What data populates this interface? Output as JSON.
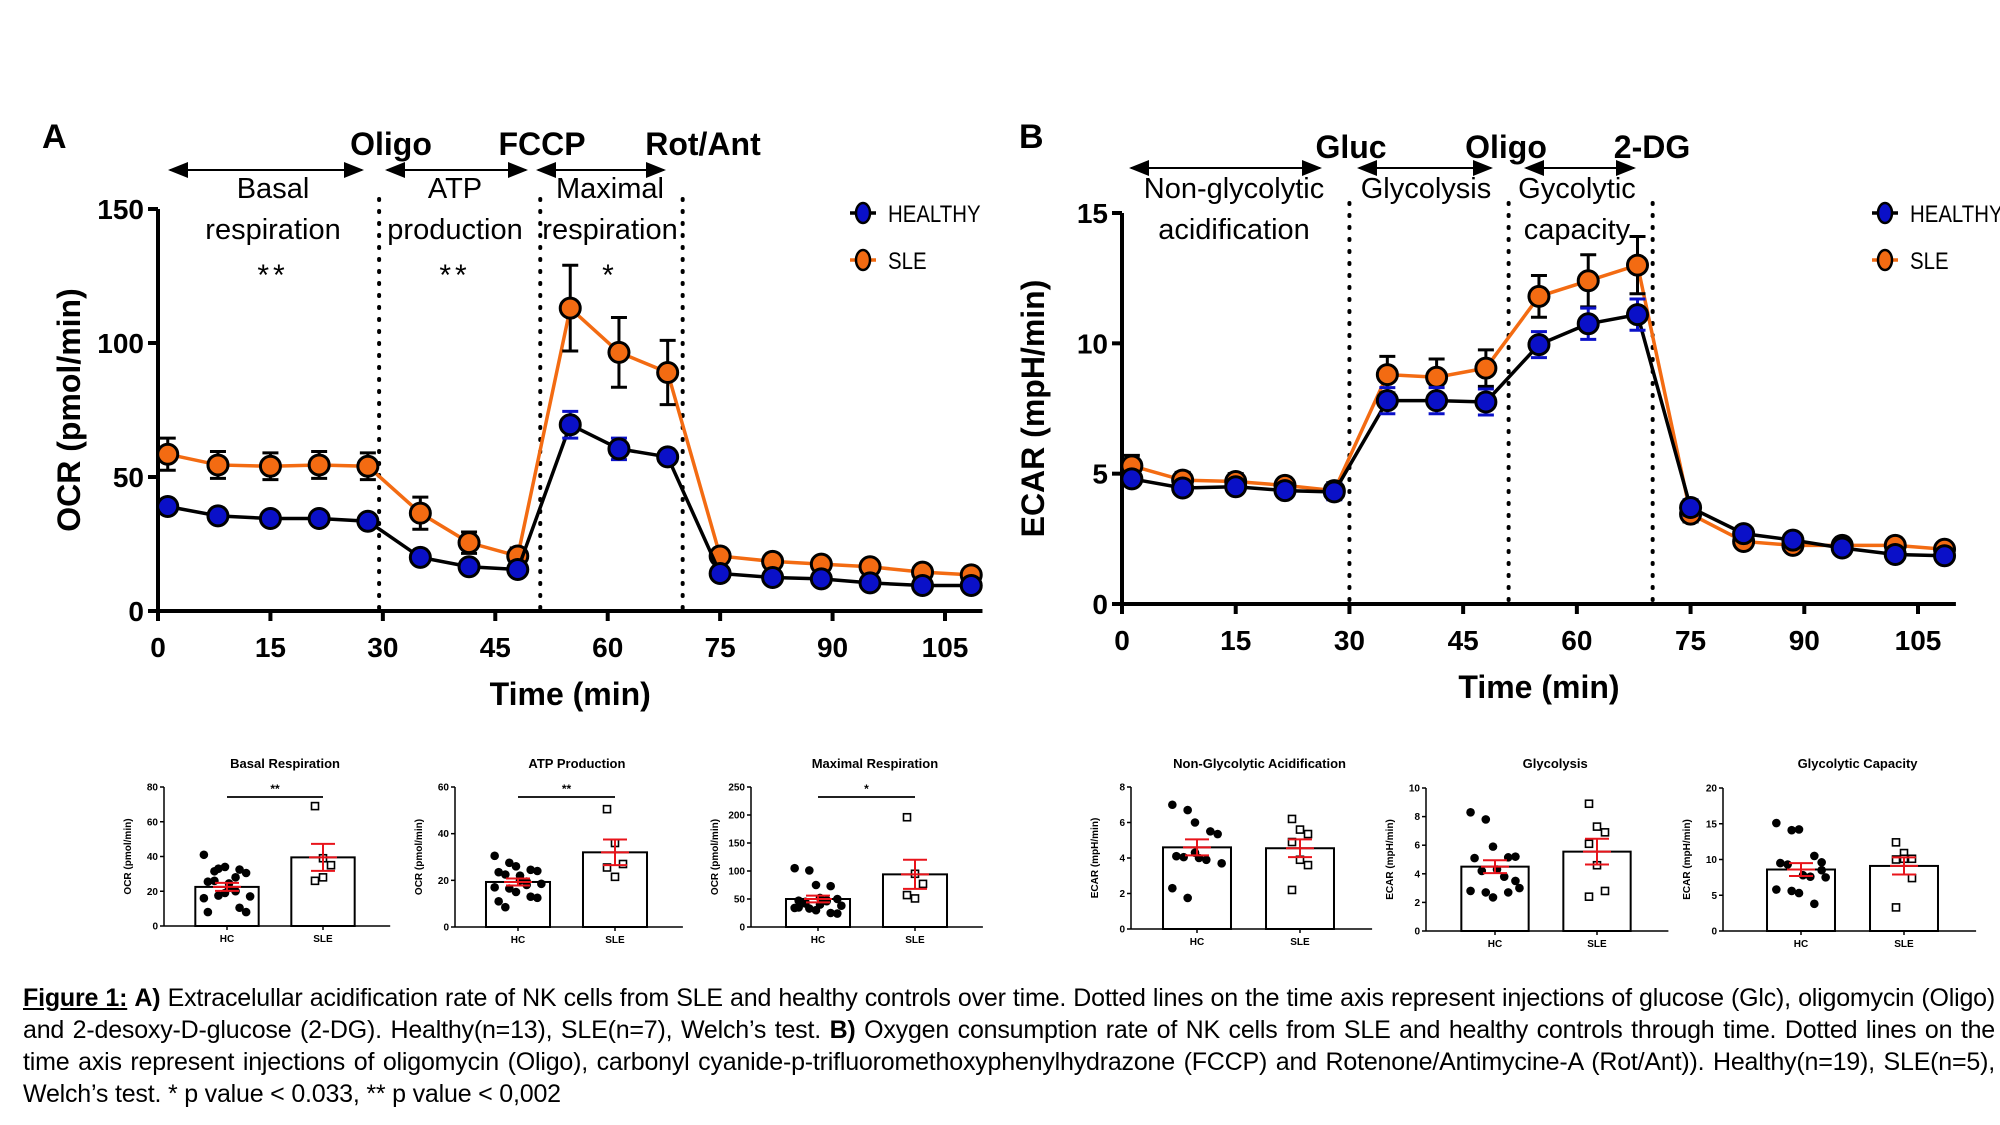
{
  "colors": {
    "healthy": "#0a10c8",
    "sle": "#f36b12",
    "sem": "#e8141b",
    "axis": "#000000"
  },
  "chart_data": [
    {
      "panel": "A",
      "type": "line",
      "xlabel": "Time (min)",
      "ylabel": "OCR (pmol/min)",
      "xlim": [
        0,
        110
      ],
      "ylim": [
        0,
        150
      ],
      "xticks": [
        0,
        15,
        30,
        45,
        60,
        75,
        90,
        105
      ],
      "yticks": [
        0,
        50,
        100,
        150
      ],
      "legend": "top-right",
      "injections": [
        {
          "label": "Oligo",
          "x": 29.5
        },
        {
          "label": "FCCP",
          "x": 51
        },
        {
          "label": "Rot/Ant",
          "x": 70
        }
      ],
      "phases": [
        {
          "label1": "Basal",
          "label2": "respiration",
          "stars": "**"
        },
        {
          "label1": "ATP",
          "label2": "production",
          "stars": "**"
        },
        {
          "label1": "Maximal",
          "label2": "respiration",
          "stars": "*"
        }
      ],
      "x": [
        1.3,
        8,
        15,
        21.5,
        28,
        35,
        41.5,
        48,
        55,
        61.5,
        68,
        75,
        82,
        88.5,
        95,
        102,
        108.5
      ],
      "series": [
        {
          "name": "HEALTHY",
          "values": [
            39,
            35.5,
            34.5,
            34.5,
            33.5,
            20,
            16.5,
            15.5,
            69.5,
            60.5,
            57.5,
            14,
            12.5,
            12,
            10.5,
            9.5,
            9.5
          ],
          "error": [
            2,
            1.5,
            1.5,
            1.5,
            1.5,
            1.5,
            1.5,
            1.5,
            5,
            4,
            2,
            1.5,
            1,
            1,
            1,
            1,
            1
          ]
        },
        {
          "name": "SLE",
          "values": [
            58.5,
            54.5,
            54,
            54.5,
            54,
            36.5,
            25.5,
            20.5,
            113,
            96.5,
            89,
            20.5,
            18.5,
            17.5,
            16.5,
            14.5,
            13.5
          ],
          "error": [
            6,
            5,
            5,
            5,
            5,
            6,
            4,
            3,
            16,
            13,
            12,
            2,
            2,
            2,
            2,
            2,
            2
          ]
        }
      ]
    },
    {
      "panel": "B",
      "type": "line",
      "xlabel": "Time (min)",
      "ylabel": "ECAR (mpH/min)",
      "xlim": [
        0,
        110
      ],
      "ylim": [
        0,
        15
      ],
      "xticks": [
        0,
        15,
        30,
        45,
        60,
        75,
        90,
        105
      ],
      "yticks": [
        0,
        5,
        10,
        15
      ],
      "legend": "top-right",
      "injections": [
        {
          "label": "Gluc",
          "x": 30
        },
        {
          "label": "Oligo",
          "x": 51
        },
        {
          "label": "2-DG",
          "x": 70
        }
      ],
      "phases": [
        {
          "label1": "Non-glycolytic",
          "label2": "acidification",
          "stars": ""
        },
        {
          "label1": "Glycolysis",
          "label2": "",
          "stars": ""
        },
        {
          "label1": "Gycolytic",
          "label2": "capacity",
          "stars": ""
        }
      ],
      "x": [
        1.3,
        8,
        15,
        21.5,
        28,
        35,
        41.5,
        48,
        55,
        61.5,
        68,
        75,
        82,
        88.5,
        95,
        102,
        108.5
      ],
      "series": [
        {
          "name": "HEALTHY",
          "values": [
            4.8,
            4.45,
            4.5,
            4.35,
            4.3,
            7.8,
            7.8,
            7.75,
            9.95,
            10.75,
            11.1,
            3.7,
            2.7,
            2.45,
            2.15,
            1.9,
            1.85
          ],
          "error": [
            0.2,
            0.2,
            0.2,
            0.2,
            0.3,
            0.5,
            0.5,
            0.5,
            0.5,
            0.6,
            0.6,
            0.3,
            0.15,
            0.15,
            0.1,
            0.1,
            0.1
          ]
        },
        {
          "name": "SLE",
          "values": [
            5.3,
            4.75,
            4.7,
            4.55,
            4.35,
            8.8,
            8.7,
            9.05,
            11.8,
            12.4,
            13.0,
            3.45,
            2.4,
            2.25,
            2.25,
            2.25,
            2.1
          ],
          "error": [
            0.4,
            0.3,
            0.3,
            0.2,
            0.3,
            0.7,
            0.7,
            0.7,
            0.8,
            1.0,
            1.1,
            0.3,
            0.15,
            0.15,
            0.1,
            0.1,
            0.1
          ]
        }
      ]
    },
    {
      "type": "bar",
      "title": "Basal Respiration",
      "ylabel": "OCR (pmol/min)",
      "ylim": [
        0,
        80
      ],
      "yticks": [
        0,
        20,
        40,
        60,
        80
      ],
      "categories": [
        "HC",
        "SLE"
      ],
      "significance": "**",
      "means": [
        22.5,
        39.5
      ],
      "sem": [
        2.3,
        7.8
      ],
      "points": [
        [
          41,
          33,
          34,
          32.5,
          30.5,
          25.5,
          26,
          24.5,
          20,
          17,
          16,
          17.5,
          19,
          10.5,
          8,
          8,
          31.5,
          22,
          28
        ],
        [
          69,
          39,
          35,
          26,
          28
        ]
      ]
    },
    {
      "type": "bar",
      "title": "ATP Production",
      "ylabel": "OCR (pmol/min)",
      "ylim": [
        0,
        60
      ],
      "yticks": [
        0,
        20,
        40,
        60
      ],
      "categories": [
        "HC",
        "SLE"
      ],
      "significance": "**",
      "means": [
        19.3,
        32
      ],
      "sem": [
        1.5,
        5.5
      ],
      "points": [
        [
          30.5,
          27.5,
          26,
          24.5,
          24,
          23.5,
          22.5,
          20,
          19.5,
          18.5,
          17,
          16.5,
          15,
          13,
          12.5,
          11,
          8.5,
          22,
          18
        ],
        [
          50.5,
          36,
          27,
          25.5,
          21.5
        ]
      ]
    },
    {
      "type": "bar",
      "title": "Maximal Respiration",
      "ylabel": "OCR (pmol/min)",
      "ylim": [
        0,
        250
      ],
      "yticks": [
        0,
        50,
        100,
        150,
        200,
        250
      ],
      "categories": [
        "HC",
        "SLE"
      ],
      "significance": "*",
      "means": [
        50,
        94
      ],
      "sem": [
        6,
        26
      ],
      "points": [
        [
          105,
          101,
          75,
          73,
          50,
          47,
          45,
          52,
          48,
          38,
          34,
          33,
          30,
          25,
          24,
          35,
          42,
          40,
          46
        ],
        [
          196,
          95,
          77,
          57,
          51
        ]
      ]
    },
    {
      "type": "bar",
      "title": "Non-Glycolytic Acidification",
      "ylabel": "ECAR (mpH/min)",
      "ylim": [
        0,
        8
      ],
      "yticks": [
        0,
        2,
        4,
        6,
        8
      ],
      "categories": [
        "HC",
        "SLE"
      ],
      "significance": "",
      "means": [
        4.6,
        4.55
      ],
      "sem": [
        0.45,
        0.5
      ],
      "points": [
        [
          7.0,
          6.7,
          6.0,
          5.5,
          5.35,
          4.1,
          4.05,
          4.0,
          3.9,
          3.7,
          2.3,
          1.75,
          4.3
        ],
        [
          6.2,
          5.6,
          5.35,
          4.9,
          3.9,
          3.6,
          2.2
        ]
      ]
    },
    {
      "type": "bar",
      "title": "Glycolysis",
      "ylabel": "ECAR (mpH/min)",
      "ylim": [
        0,
        10
      ],
      "yticks": [
        0,
        2,
        4,
        6,
        8,
        10
      ],
      "categories": [
        "HC",
        "SLE"
      ],
      "significance": "",
      "means": [
        4.5,
        5.55
      ],
      "sem": [
        0.45,
        0.9
      ],
      "points": [
        [
          8.3,
          7.8,
          5.9,
          5.15,
          5.2,
          5.1,
          4.2,
          4.3,
          3.8,
          3.0,
          2.8,
          2.7,
          2.35,
          2.7,
          3.5
        ],
        [
          8.9,
          7.3,
          6.9,
          6.1,
          4.6,
          2.8,
          2.4
        ]
      ]
    },
    {
      "type": "bar",
      "title": "Glycolytic Capacity",
      "ylabel": "ECAR (mpH/min)",
      "ylim": [
        0,
        20
      ],
      "yticks": [
        0,
        5,
        10,
        15,
        20
      ],
      "categories": [
        "HC",
        "SLE"
      ],
      "significance": "",
      "means": [
        8.6,
        9.1
      ],
      "sem": [
        0.9,
        1.2
      ],
      "points": [
        [
          15.1,
          14.1,
          14.2,
          10.5,
          9.6,
          9.5,
          9.3,
          7.8,
          7.6,
          7.5,
          5.8,
          5.6,
          5.3,
          3.8,
          8.5
        ],
        [
          12.4,
          10.9,
          10.1,
          10.0,
          10.1,
          7.4,
          3.3
        ]
      ]
    }
  ],
  "caption": {
    "figure_label": "Figure 1:",
    "a_label": "A)",
    "a_text": " Extracelullar acidification rate of NK cells from SLE and healthy controls over time. Dotted lines on the time axis represent injections of glucose (Glc), oligomycin (Oligo) and 2-desoxy-D-glucose (2-DG). Healthy(n=13), SLE(n=7), Welch’s test. ",
    "b_label": "B)",
    "b_text": " Oxygen consumption rate of NK cells from SLE and healthy controls through time. Dotted lines on the time axis represent injections of oligomycin (Oligo), carbonyl cyanide-p-trifluoromethoxyphenylhydrazone (FCCP) and Rotenone/Antimycine-A (Rot/Ant)). Healthy(n=19), SLE(n=5), Welch’s test. * p value < 0.033, ** p value < 0,002"
  }
}
